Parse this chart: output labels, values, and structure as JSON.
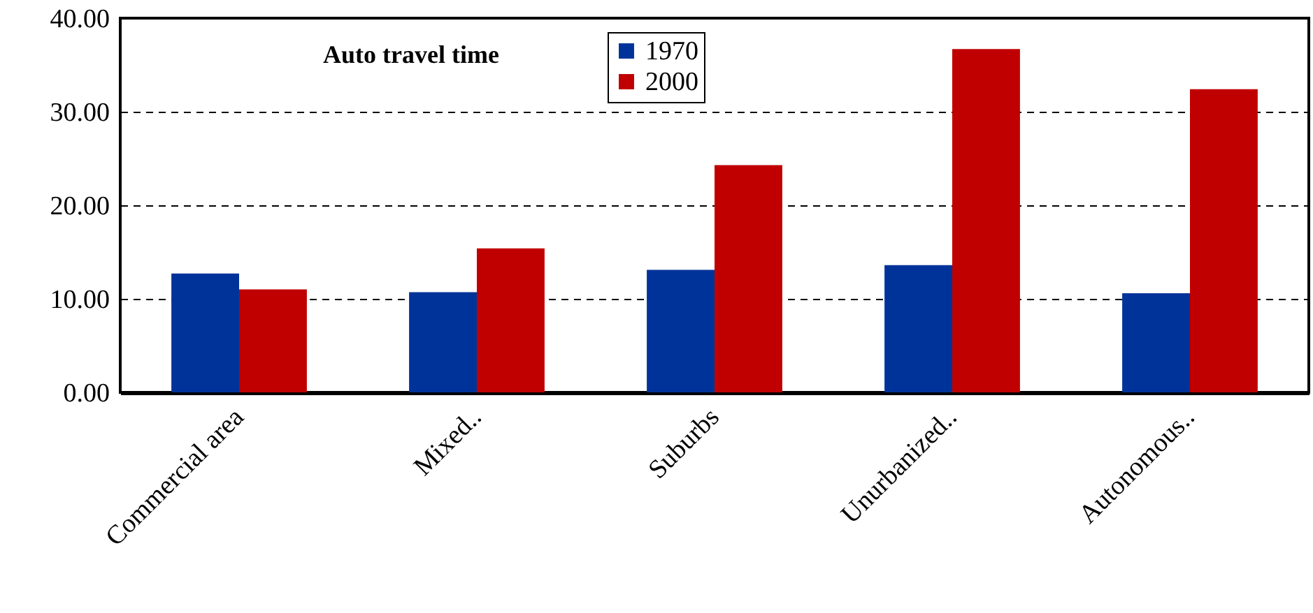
{
  "chart_data": {
    "type": "bar",
    "title": "Auto travel time",
    "categories": [
      "Commercial area",
      "Mixed..",
      "Suburbs",
      "Unurbanized..",
      "Autonomous.."
    ],
    "series": [
      {
        "name": "1970",
        "color": "#003399",
        "values": [
          12.7,
          10.7,
          13.1,
          13.6,
          10.6
        ]
      },
      {
        "name": "2000",
        "color": "#c00000",
        "values": [
          11.0,
          15.4,
          24.3,
          36.7,
          32.4
        ]
      }
    ],
    "ylim": [
      0,
      40
    ],
    "yticks": [
      {
        "value": 0,
        "label": "0.00"
      },
      {
        "value": 10,
        "label": "10.00"
      },
      {
        "value": 20,
        "label": "20.00"
      },
      {
        "value": 30,
        "label": "30.00"
      },
      {
        "value": 40,
        "label": "40.00"
      }
    ],
    "grid": "y",
    "legend": "top"
  }
}
